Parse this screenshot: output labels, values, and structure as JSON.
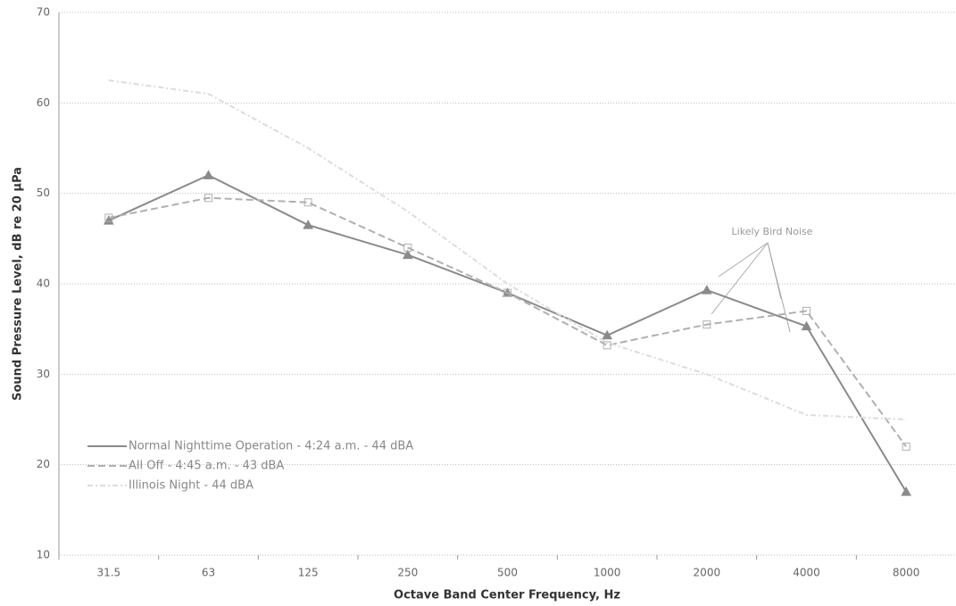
{
  "chart_data": {
    "type": "line",
    "xlabel": "Octave Band Center Frequency, Hz",
    "ylabel": "Sound Pressure Level, dB re 20 µPa",
    "categories": [
      "31.5",
      "63",
      "125",
      "250",
      "500",
      "1000",
      "2000",
      "4000",
      "8000"
    ],
    "series": [
      {
        "name": "Normal Nighttime Operation - 4:24 a.m. - 44 dBA",
        "color": "#8a8a8a",
        "values": [
          47,
          52,
          46.5,
          43.2,
          39,
          34.3,
          39.3,
          35.3,
          17
        ]
      },
      {
        "name": "All Off - 4:45 a.m. - 43 dBA",
        "color": "#b0b0b0",
        "values": [
          47.3,
          49.5,
          49,
          44,
          39,
          33.2,
          35.5,
          37,
          22
        ]
      },
      {
        "name": "Illinois Night - 44 dBA",
        "color": "#dcdcdc",
        "values": [
          62.5,
          61,
          55,
          48,
          40,
          33.5,
          30,
          25.5,
          25
        ]
      }
    ],
    "annotation": "Likely Bird Noise",
    "ylim": [
      10,
      70
    ],
    "yticks": [
      10,
      20,
      30,
      40,
      50,
      60,
      70
    ],
    "grid": true,
    "legend": "lower left"
  }
}
